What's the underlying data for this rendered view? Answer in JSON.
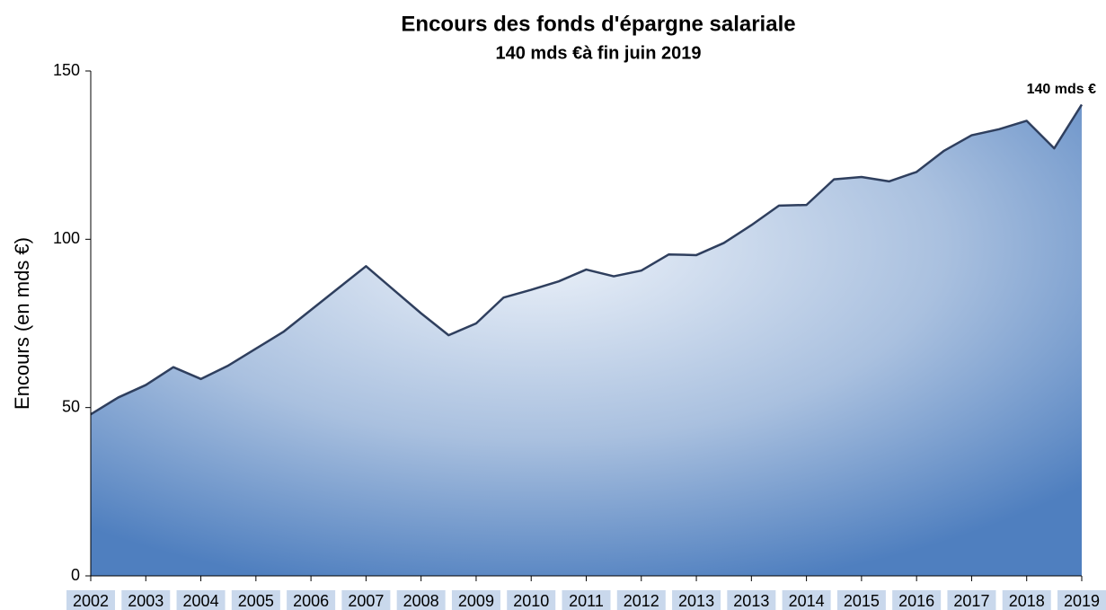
{
  "chart_data": {
    "type": "area",
    "title": "Encours des fonds d'épargne salariale",
    "subtitle": "140 mds €à fin juin 2019",
    "y_label": "Encours (en mds €)",
    "annotation": "140 mds €",
    "categories": [
      "2002",
      null,
      "2003",
      null,
      "2004",
      null,
      "2005",
      null,
      "2006",
      null,
      "2007",
      null,
      "2008",
      null,
      "2009",
      null,
      "2010",
      null,
      "2011",
      null,
      "2012",
      null,
      "2013",
      null,
      "2013",
      null,
      "2014",
      null,
      "2015",
      null,
      "2016",
      null,
      "2017",
      null,
      "2018",
      null,
      "2019"
    ],
    "values": [
      48,
      53,
      56.7,
      62,
      58.5,
      62.5,
      67.5,
      72.5,
      79,
      85.5,
      92,
      85,
      78,
      71.5,
      75,
      82.7,
      85,
      87.5,
      91,
      89,
      90.7,
      95.5,
      95.3,
      98.9,
      104.2,
      110,
      110.2,
      117.8,
      118.5,
      117.2,
      120,
      126.3,
      130.9,
      132.7,
      135.2,
      127,
      140
    ],
    "color": "#2f3f5e",
    "ylim": [
      0,
      150
    ],
    "yticks": [
      0,
      50,
      100,
      150
    ]
  }
}
